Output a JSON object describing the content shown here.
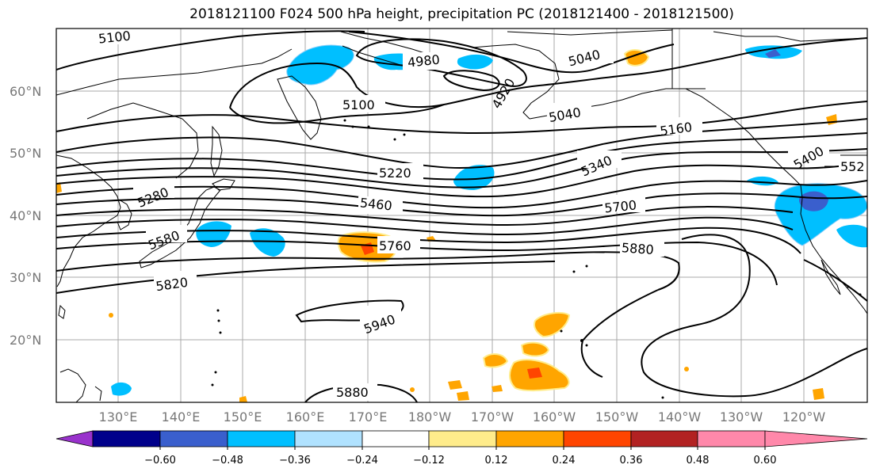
{
  "title": "2018121100 F024 500 hPa height, precipitation PC (2018121400 - 2018121500)",
  "lat_labels": [
    "60°N",
    "50°N",
    "40°N",
    "30°N",
    "20°N"
  ],
  "lon_labels": [
    "130°E",
    "140°E",
    "150°E",
    "160°E",
    "170°E",
    "180°W",
    "170°W",
    "160°W",
    "150°W",
    "140°W",
    "130°W",
    "120°W"
  ],
  "contour_labels": [
    "5100",
    "4980",
    "4920",
    "5040",
    "5100",
    "5040",
    "5160",
    "5220",
    "5340",
    "5400",
    "552",
    "5280",
    "5460",
    "5700",
    "5580",
    "5760",
    "5880",
    "5820",
    "5940",
    "5880"
  ],
  "colorbar": {
    "ticks": [
      "−0.60",
      "−0.48",
      "−0.36",
      "−0.24",
      "−0.12",
      "0.12",
      "0.24",
      "0.36",
      "0.48",
      "0.60"
    ],
    "colors": [
      "#9932cc",
      "#00008b",
      "#3a5fcd",
      "#00bfff",
      "#b0e2ff",
      "#ffffff",
      "#ffec8b",
      "#ffa500",
      "#ff4500",
      "#b22222",
      "#ff88aa"
    ]
  },
  "colors": {
    "contour": "#000000",
    "grid": "#aaaaaa",
    "neg_medium": "#00bfff",
    "neg_strong": "#3a5fcd",
    "pos_light": "#ffec8b",
    "pos_medium": "#ffa500",
    "pos_strong": "#ff4500"
  }
}
